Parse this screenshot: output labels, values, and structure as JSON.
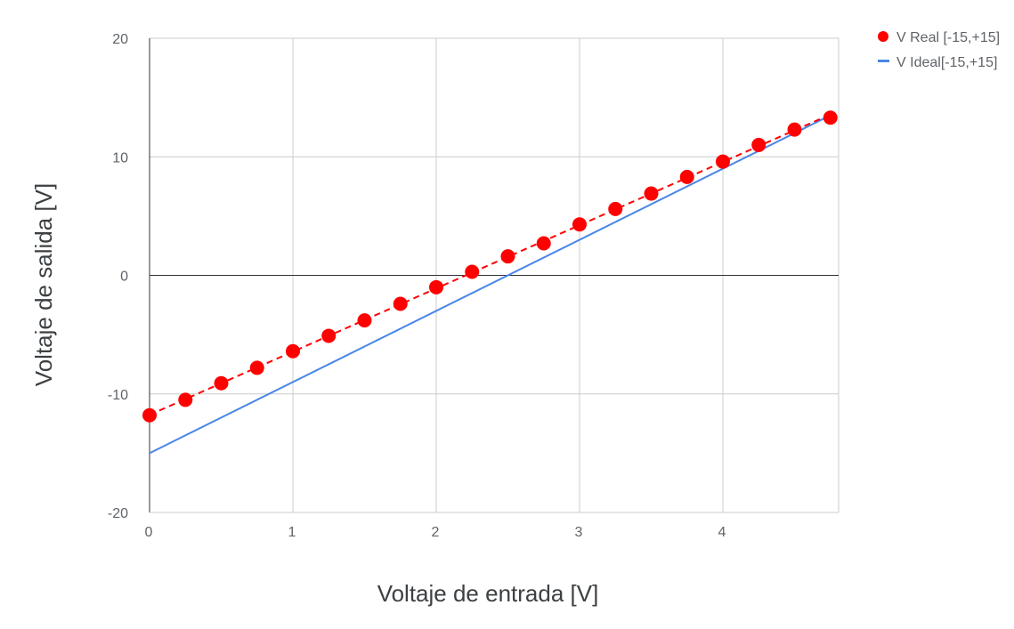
{
  "chart_data": {
    "type": "scatter",
    "title": "",
    "xlabel": "Voltaje de entrada [V]",
    "ylabel": "Voltaje de salida [V]",
    "xlim": [
      0,
      4.8
    ],
    "ylim": [
      -20,
      20
    ],
    "x_ticks": [
      "0",
      "1",
      "2",
      "3",
      "4"
    ],
    "y_ticks": [
      "-20",
      "-10",
      "0",
      "10",
      "20"
    ],
    "grid": true,
    "legend_position": "top-right",
    "series": [
      {
        "name": "V Real [-15,+15]",
        "style": "markers-with-dashed-trendline",
        "color": "#ff0000",
        "x": [
          0,
          0.25,
          0.5,
          0.75,
          1.0,
          1.25,
          1.5,
          1.75,
          2.0,
          2.25,
          2.5,
          2.75,
          3.0,
          3.25,
          3.5,
          3.75,
          4.0,
          4.25,
          4.5,
          4.75
        ],
        "y": [
          -11.8,
          -10.5,
          -9.1,
          -7.8,
          -6.4,
          -5.1,
          -3.8,
          -2.4,
          -1.0,
          0.3,
          1.6,
          2.7,
          4.3,
          5.6,
          6.9,
          8.3,
          9.6,
          11.0,
          12.3,
          13.3
        ]
      },
      {
        "name": "V Ideal[-15,+15]",
        "style": "line",
        "color": "#4a86e8",
        "x": [
          0,
          4.75
        ],
        "y": [
          -15,
          13.5
        ]
      }
    ]
  }
}
